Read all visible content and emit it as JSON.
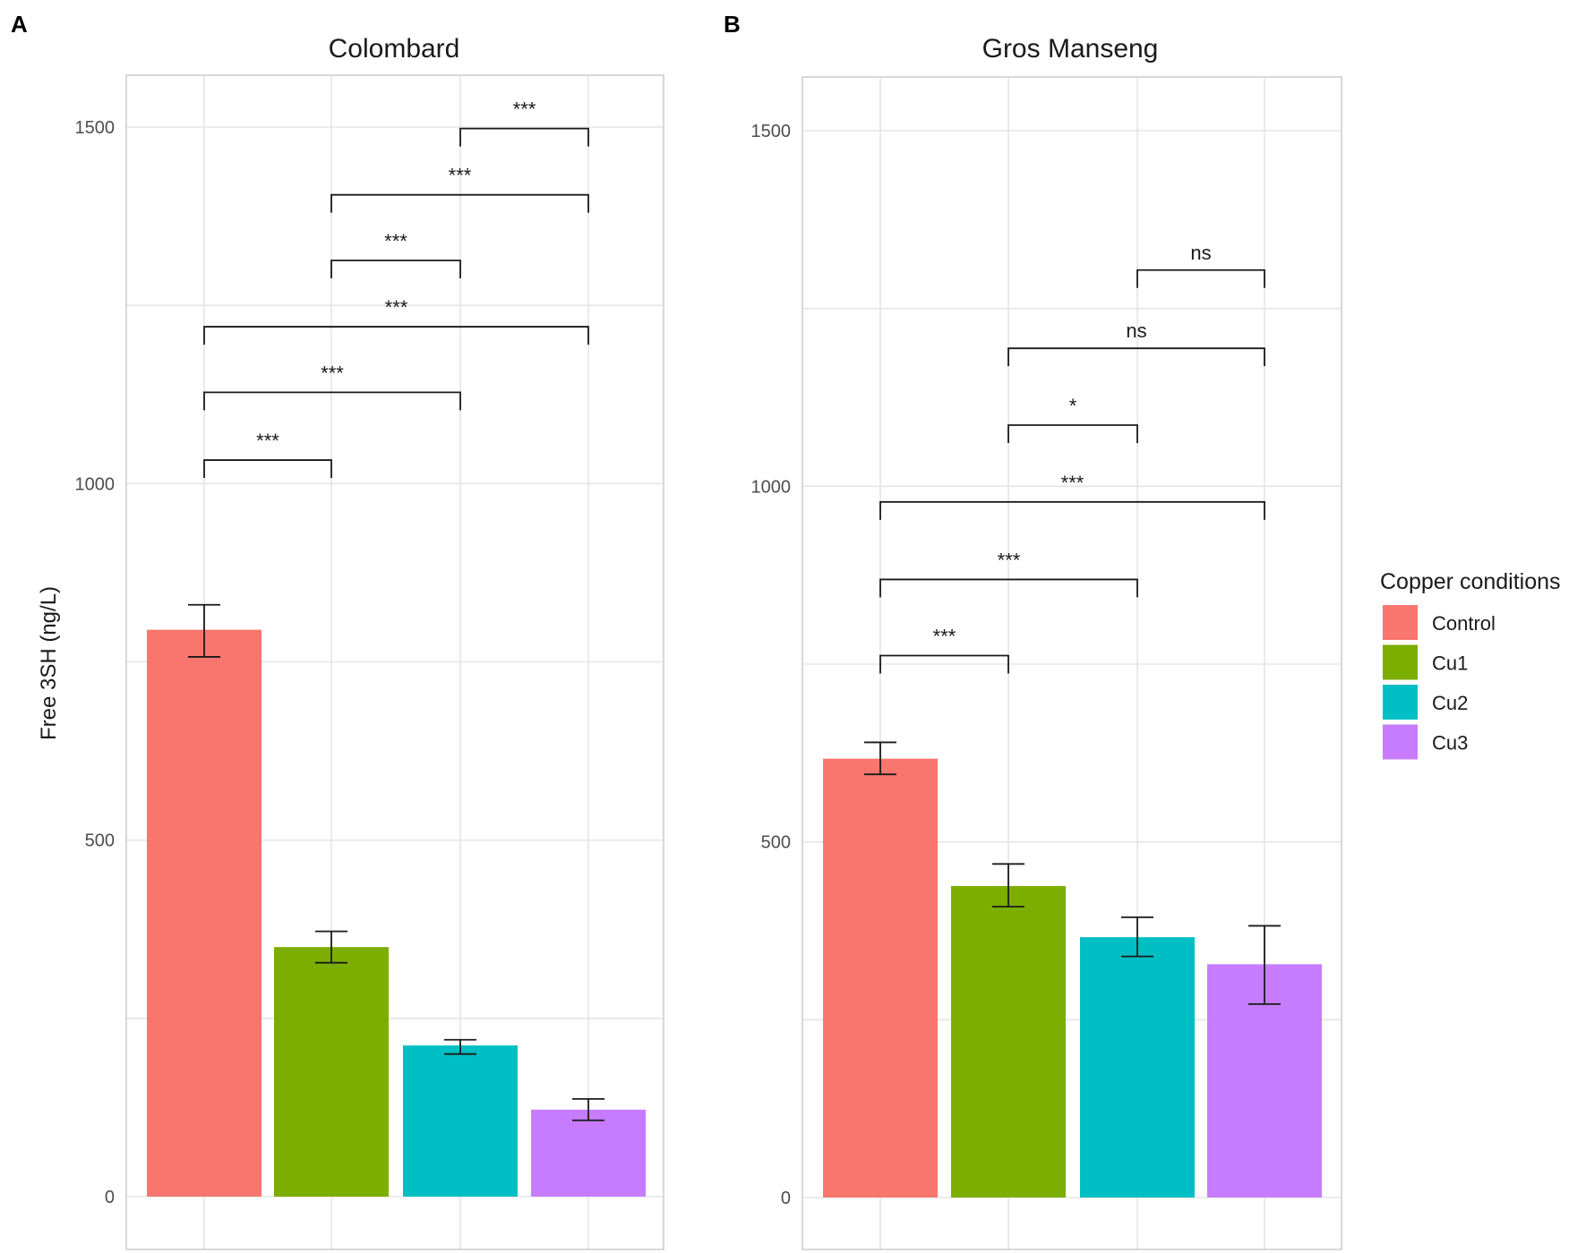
{
  "figure": {
    "y_axis_title": "Free 3SH (ng/L)"
  },
  "legend": {
    "title": "Copper conditions",
    "items": [
      {
        "label": "Control",
        "color": "#F8766D"
      },
      {
        "label": "Cu1",
        "color": "#7CAE00"
      },
      {
        "label": "Cu2",
        "color": "#00BFC4"
      },
      {
        "label": "Cu3",
        "color": "#C77CFF"
      }
    ]
  },
  "chart_data": [
    {
      "type": "bar",
      "panel_label": "A",
      "title": "Colombard",
      "xlabel": "",
      "ylabel": "Free 3SH (ng/L)",
      "categories": [
        "Control",
        "Cu1",
        "Cu2",
        "Cu3"
      ],
      "values": [
        795,
        350,
        212,
        122
      ],
      "errors": [
        [
          757,
          830
        ],
        [
          328,
          372
        ],
        [
          200,
          220
        ],
        [
          107,
          137
        ]
      ],
      "ylim": [
        -80,
        1575
      ],
      "yticks": [
        0,
        500,
        1000,
        1500
      ],
      "comparisons": [
        {
          "from": 0,
          "to": 1,
          "label": "***",
          "y": 1033
        },
        {
          "from": 0,
          "to": 2,
          "label": "***",
          "y": 1128
        },
        {
          "from": 0,
          "to": 3,
          "label": "***",
          "y": 1220
        },
        {
          "from": 1,
          "to": 2,
          "label": "***",
          "y": 1313
        },
        {
          "from": 1,
          "to": 3,
          "label": "***",
          "y": 1405
        },
        {
          "from": 2,
          "to": 3,
          "label": "***",
          "y": 1498
        }
      ]
    },
    {
      "type": "bar",
      "panel_label": "B",
      "title": "Gros Manseng",
      "xlabel": "",
      "ylabel": "",
      "categories": [
        "Control",
        "Cu1",
        "Cu2",
        "Cu3"
      ],
      "values": [
        617,
        438,
        366,
        328
      ],
      "errors": [
        [
          595,
          640
        ],
        [
          409,
          469
        ],
        [
          339,
          394
        ],
        [
          272,
          382
        ]
      ],
      "ylim": [
        -80,
        1575
      ],
      "yticks": [
        0,
        500,
        1000,
        1500
      ],
      "comparisons": [
        {
          "from": 0,
          "to": 1,
          "label": "***",
          "y": 762
        },
        {
          "from": 0,
          "to": 2,
          "label": "***",
          "y": 869
        },
        {
          "from": 0,
          "to": 3,
          "label": "***",
          "y": 978
        },
        {
          "from": 1,
          "to": 2,
          "label": "*",
          "y": 1086
        },
        {
          "from": 1,
          "to": 3,
          "label": "ns",
          "y": 1194
        },
        {
          "from": 2,
          "to": 3,
          "label": "ns",
          "y": 1304
        }
      ]
    }
  ]
}
